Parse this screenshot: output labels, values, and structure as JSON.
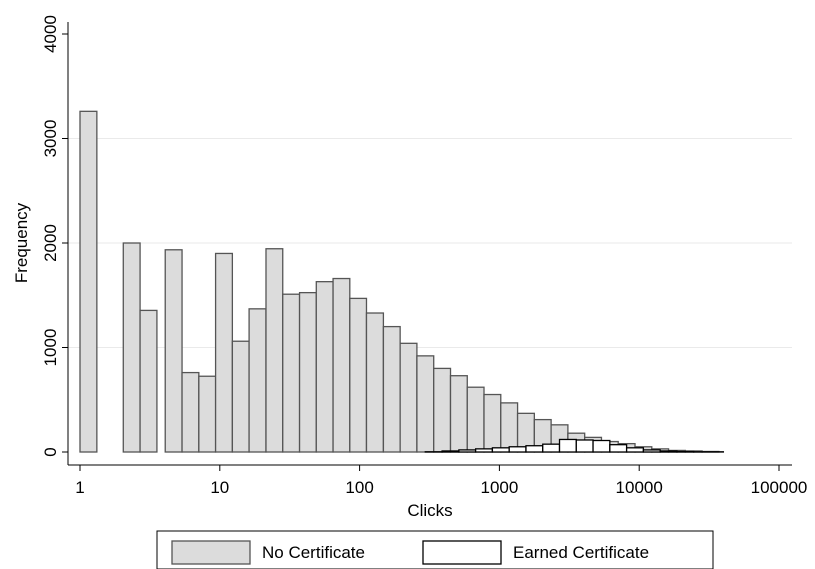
{
  "chart_data": {
    "type": "bar",
    "title": "",
    "xlabel": "Clicks",
    "ylabel": "Frequency",
    "x_scale": "log",
    "xlim": [
      1,
      100000
    ],
    "ylim": [
      0,
      4000
    ],
    "x_ticks": [
      {
        "value": 1,
        "label": "1"
      },
      {
        "value": 10,
        "label": "10"
      },
      {
        "value": 100,
        "label": "100"
      },
      {
        "value": 1000,
        "label": "1000"
      },
      {
        "value": 10000,
        "label": "10000"
      },
      {
        "value": 100000,
        "label": "100000"
      }
    ],
    "y_ticks": [
      {
        "value": 0,
        "label": "0"
      },
      {
        "value": 1000,
        "label": "1000"
      },
      {
        "value": 2000,
        "label": "2000"
      },
      {
        "value": 3000,
        "label": "3000"
      },
      {
        "value": 4000,
        "label": "4000"
      }
    ],
    "grid": {
      "horizontal": true,
      "vertical": false
    },
    "legend_position": "bottom",
    "series": [
      {
        "name": "No Certificate",
        "color": "#dcdcdc",
        "edge_color": "#555555",
        "bins": [
          {
            "x0": 1.0,
            "x1": 1.32,
            "value": 3260
          },
          {
            "x0": 2.04,
            "x1": 2.69,
            "value": 2000
          },
          {
            "x0": 2.69,
            "x1": 3.55,
            "value": 1355
          },
          {
            "x0": 4.07,
            "x1": 5.37,
            "value": 1935
          },
          {
            "x0": 5.37,
            "x1": 7.08,
            "value": 760
          },
          {
            "x0": 7.08,
            "x1": 9.33,
            "value": 725
          },
          {
            "x0": 9.33,
            "x1": 12.3,
            "value": 1900
          },
          {
            "x0": 12.3,
            "x1": 16.2,
            "value": 1060
          },
          {
            "x0": 16.2,
            "x1": 21.4,
            "value": 1370
          },
          {
            "x0": 21.4,
            "x1": 28.2,
            "value": 1945
          },
          {
            "x0": 28.2,
            "x1": 37.2,
            "value": 1510
          },
          {
            "x0": 37.2,
            "x1": 49.0,
            "value": 1525
          },
          {
            "x0": 49.0,
            "x1": 64.6,
            "value": 1630
          },
          {
            "x0": 64.6,
            "x1": 85.1,
            "value": 1660
          },
          {
            "x0": 85.1,
            "x1": 112,
            "value": 1470
          },
          {
            "x0": 112,
            "x1": 148,
            "value": 1330
          },
          {
            "x0": 148,
            "x1": 195,
            "value": 1200
          },
          {
            "x0": 195,
            "x1": 257,
            "value": 1040
          },
          {
            "x0": 257,
            "x1": 339,
            "value": 920
          },
          {
            "x0": 339,
            "x1": 447,
            "value": 800
          },
          {
            "x0": 447,
            "x1": 589,
            "value": 730
          },
          {
            "x0": 589,
            "x1": 776,
            "value": 620
          },
          {
            "x0": 776,
            "x1": 1023,
            "value": 550
          },
          {
            "x0": 1023,
            "x1": 1349,
            "value": 470
          },
          {
            "x0": 1349,
            "x1": 1778,
            "value": 370
          },
          {
            "x0": 1778,
            "x1": 2344,
            "value": 310
          },
          {
            "x0": 2344,
            "x1": 3090,
            "value": 260
          },
          {
            "x0": 3090,
            "x1": 4074,
            "value": 180
          },
          {
            "x0": 4074,
            "x1": 5370,
            "value": 140
          },
          {
            "x0": 5370,
            "x1": 7079,
            "value": 100
          },
          {
            "x0": 7079,
            "x1": 9333,
            "value": 80
          },
          {
            "x0": 9333,
            "x1": 12303,
            "value": 50
          },
          {
            "x0": 12303,
            "x1": 16218,
            "value": 30
          },
          {
            "x0": 16218,
            "x1": 21380,
            "value": 15
          },
          {
            "x0": 21380,
            "x1": 28184,
            "value": 10
          },
          {
            "x0": 28184,
            "x1": 37154,
            "value": 5
          }
        ]
      },
      {
        "name": "Earned Certificate",
        "color": "#ffffff",
        "edge_color": "#000000",
        "bins": [
          {
            "x0": 295,
            "x1": 389,
            "value": 2
          },
          {
            "x0": 389,
            "x1": 513,
            "value": 10
          },
          {
            "x0": 513,
            "x1": 676,
            "value": 20
          },
          {
            "x0": 676,
            "x1": 891,
            "value": 30
          },
          {
            "x0": 891,
            "x1": 1175,
            "value": 40
          },
          {
            "x0": 1175,
            "x1": 1549,
            "value": 50
          },
          {
            "x0": 1549,
            "x1": 2042,
            "value": 60
          },
          {
            "x0": 2042,
            "x1": 2692,
            "value": 75
          },
          {
            "x0": 2692,
            "x1": 3548,
            "value": 120
          },
          {
            "x0": 3548,
            "x1": 4677,
            "value": 115
          },
          {
            "x0": 4677,
            "x1": 6166,
            "value": 110
          },
          {
            "x0": 6166,
            "x1": 8128,
            "value": 70
          },
          {
            "x0": 8128,
            "x1": 10715,
            "value": 40
          },
          {
            "x0": 10715,
            "x1": 14125,
            "value": 20
          },
          {
            "x0": 14125,
            "x1": 18621,
            "value": 10
          },
          {
            "x0": 18621,
            "x1": 24547,
            "value": 5
          },
          {
            "x0": 24547,
            "x1": 40000,
            "value": 2
          }
        ]
      }
    ]
  }
}
